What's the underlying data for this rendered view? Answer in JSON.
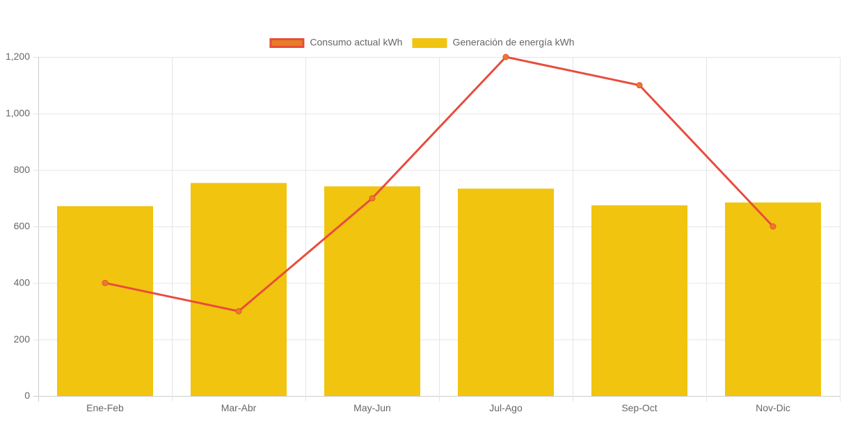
{
  "chart_data": {
    "type": "bar",
    "categories": [
      "Ene-Feb",
      "Mar-Abr",
      "May-Jun",
      "Jul-Ago",
      "Sep-Oct",
      "Nov-Dic"
    ],
    "ylim": [
      0,
      1200
    ],
    "y_ticks": [
      0,
      200,
      400,
      600,
      800,
      1000,
      1200
    ],
    "y_tick_labels": [
      "0",
      "200",
      "400",
      "600",
      "800",
      "1,000",
      "1,200"
    ],
    "grid": true,
    "legend_position": "top-center",
    "series": [
      {
        "name": "Consumo actual kWh",
        "type": "line",
        "values": [
          400,
          300,
          700,
          1200,
          1100,
          600
        ],
        "color": "#e84c3d",
        "point_color": "#e67e22"
      },
      {
        "name": "Generación de energía kWh",
        "type": "bar",
        "values": [
          672,
          754,
          742,
          734,
          675,
          685
        ],
        "color": "#f1c40f"
      }
    ]
  }
}
